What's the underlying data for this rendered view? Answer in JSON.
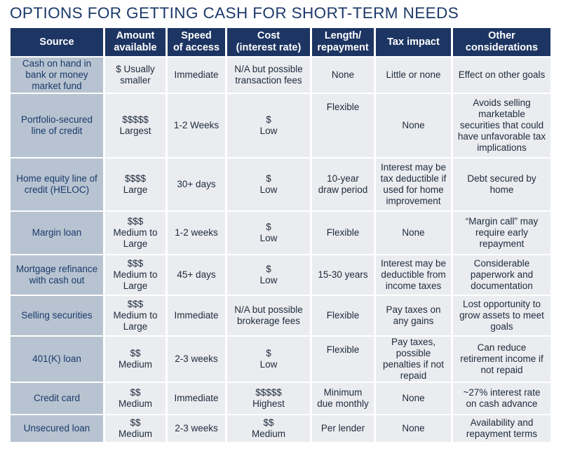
{
  "title": "OPTIONS FOR GETTING CASH FOR SHORT-TERM NEEDS",
  "headers": [
    [
      "Source"
    ],
    [
      "Amount",
      "available"
    ],
    [
      "Speed",
      "of access"
    ],
    [
      "Cost",
      "(interest rate)"
    ],
    [
      "Length/",
      "repayment"
    ],
    [
      "Tax impact"
    ],
    [
      "Other",
      "considerations"
    ]
  ],
  "rows": [
    [
      [
        "Cash on hand in",
        "bank or money",
        "market fund"
      ],
      [
        "$ Usually",
        "smaller"
      ],
      [
        "Immediate"
      ],
      [
        "N/A but possible",
        "transaction fees"
      ],
      [
        "None"
      ],
      [
        "Little or none"
      ],
      [
        "Effect on other goals"
      ]
    ],
    [
      [
        "Portfolio-secured",
        "line of credit"
      ],
      [
        "$$$$$",
        "Largest"
      ],
      [
        "1-2 Weeks"
      ],
      [
        "$",
        "Low"
      ],
      [
        "Flexible"
      ],
      [
        "None"
      ],
      [
        "Avoids selling",
        "marketable",
        "securities that could",
        "have unfavorable tax",
        "implications"
      ]
    ],
    [
      [
        "Home equity line of",
        "credit (HELOC)"
      ],
      [
        "$$$$",
        "Large"
      ],
      [
        "30+ days"
      ],
      [
        "$",
        "Low"
      ],
      [
        "10-year",
        "draw period"
      ],
      [
        "Interest may be",
        "tax deductible if",
        "used for home",
        "improvement"
      ],
      [
        "Debt secured by",
        "home"
      ]
    ],
    [
      [
        "Margin loan"
      ],
      [
        "$$$",
        "Medium to",
        "Large"
      ],
      [
        "1-2 weeks"
      ],
      [
        "$",
        "Low"
      ],
      [
        "Flexible"
      ],
      [
        "None"
      ],
      [
        "“Margin call” may",
        "require early",
        "repayment"
      ]
    ],
    [
      [
        "Mortgage refinance",
        "with cash out"
      ],
      [
        "$$$",
        "Medium to",
        "Large"
      ],
      [
        "45+ days"
      ],
      [
        "$",
        "Low"
      ],
      [
        "15-30 years"
      ],
      [
        "Interest may be",
        "deductible from",
        "income taxes"
      ],
      [
        "Considerable",
        "paperwork and",
        "documentation"
      ]
    ],
    [
      [
        "Selling securities"
      ],
      [
        "$$$",
        "Medium to",
        "Large"
      ],
      [
        "Immediate"
      ],
      [
        "N/A but possible",
        "brokerage fees"
      ],
      [
        "Flexible"
      ],
      [
        "Pay taxes on",
        "any gains"
      ],
      [
        "Lost opportunity to",
        "grow assets to meet",
        "goals"
      ]
    ],
    [
      [
        "401(K) loan"
      ],
      [
        "$$",
        "Medium"
      ],
      [
        "2-3 weeks"
      ],
      [
        "$",
        "Low"
      ],
      [
        "Flexible"
      ],
      [
        "Pay taxes,",
        "possible",
        "penalties if not",
        "repaid"
      ],
      [
        "Can reduce",
        "retirement income if",
        "not repaid"
      ]
    ],
    [
      [
        "Credit card"
      ],
      [
        "$$",
        "Medium"
      ],
      [
        "Immediate"
      ],
      [
        "$$$$$",
        "Highest"
      ],
      [
        "Minimum",
        "due monthly"
      ],
      [
        "None"
      ],
      [
        "~27% interest rate",
        "on cash advance"
      ]
    ],
    [
      [
        "Unsecured loan"
      ],
      [
        "$$",
        "Medium"
      ],
      [
        "2-3 weeks"
      ],
      [
        "$$",
        "Medium"
      ],
      [
        "Per lender"
      ],
      [
        "None"
      ],
      [
        "Availability and",
        "repayment terms"
      ]
    ]
  ]
}
